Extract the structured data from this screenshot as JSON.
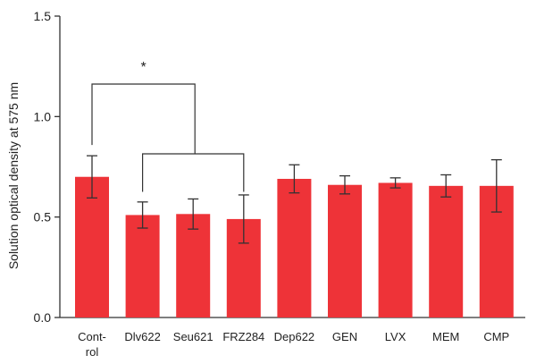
{
  "chart_data": {
    "type": "bar",
    "categories": [
      "Cont-rol",
      "Dlv622",
      "Seu621",
      "FRZ284",
      "Dep622",
      "GEN",
      "LVX",
      "MEM",
      "CMP"
    ],
    "category_lines": [
      [
        "Cont-",
        "rol"
      ],
      [
        "Dlv622"
      ],
      [
        "Seu621"
      ],
      [
        "FRZ284"
      ],
      [
        "Dep622"
      ],
      [
        "GEN"
      ],
      [
        "LVX"
      ],
      [
        "MEM"
      ],
      [
        "CMP"
      ]
    ],
    "values": [
      0.7,
      0.51,
      0.515,
      0.49,
      0.69,
      0.66,
      0.67,
      0.655,
      0.655
    ],
    "errors": [
      0.105,
      0.065,
      0.075,
      0.12,
      0.07,
      0.045,
      0.025,
      0.055,
      0.13
    ],
    "ylabel": "Solution optical density at 575 nm",
    "ylim": [
      0,
      1.5
    ],
    "yticks": [
      0.0,
      0.5,
      1.0,
      1.5
    ],
    "ytick_labels": [
      "0.0",
      "0.5",
      "1.0",
      "1.5"
    ],
    "bar_color": "#ee3338",
    "error_color": "#333333",
    "significance": {
      "label": "*",
      "from": "Control",
      "to_group": [
        "Dlv622",
        "Seu621",
        "FRZ284"
      ]
    },
    "grid": false
  }
}
